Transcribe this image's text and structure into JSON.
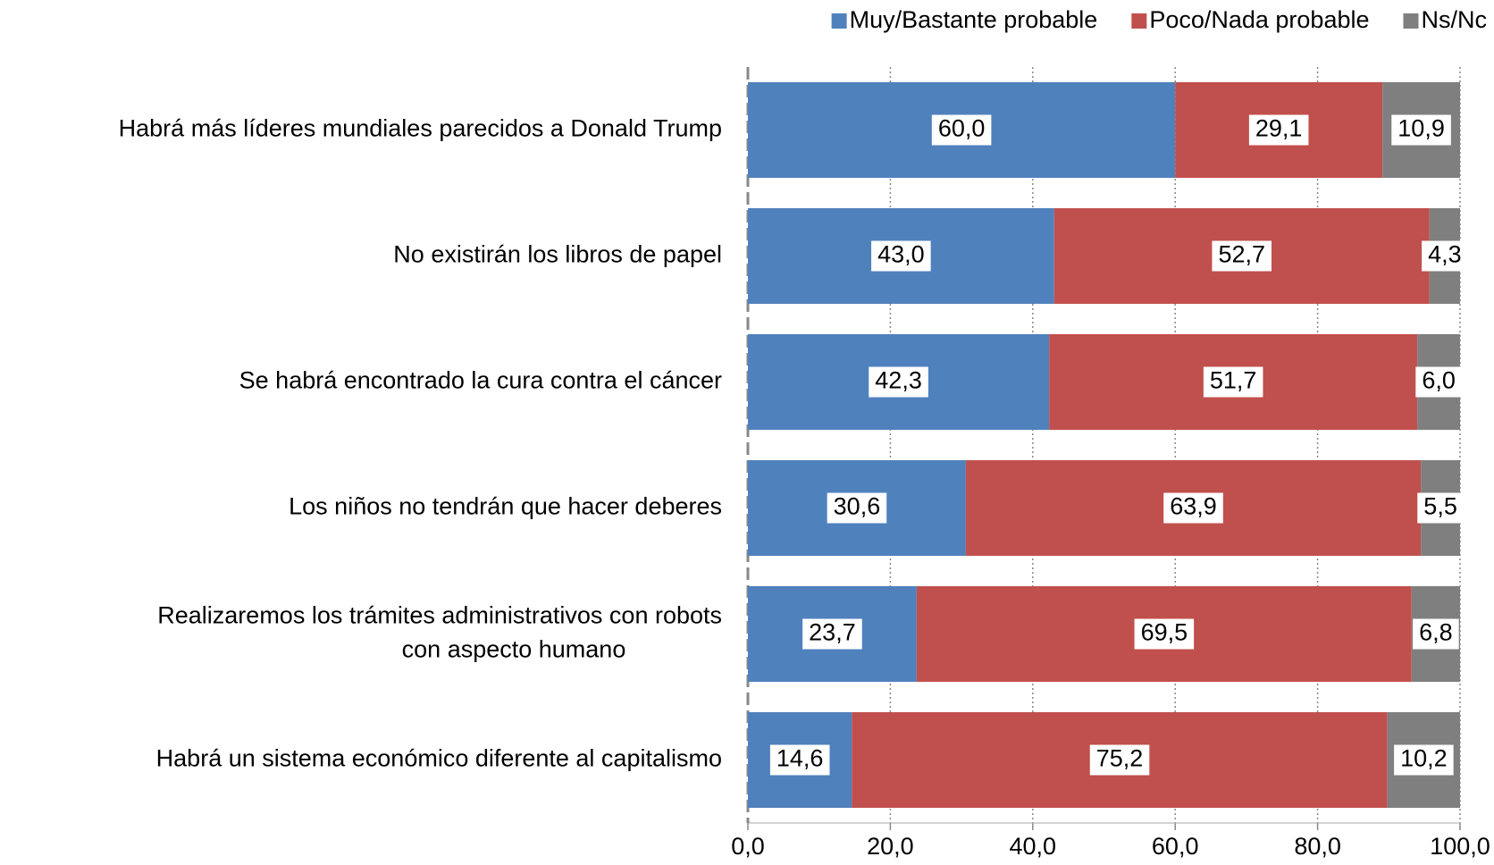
{
  "chart_data": {
    "type": "stacked_barh",
    "categories": [
      "Habrá más líderes mundiales parecidos a Donald Trump",
      "No existirán los libros de papel",
      "Se habrá encontrado la cura contra el cáncer",
      "Los niños no tendrán que hacer deberes",
      "Realizaremos los trámites administrativos con robots\ncon aspecto humano",
      "Habrá un sistema económico diferente al capitalismo"
    ],
    "series": [
      {
        "name": "Muy/Bastante probable",
        "color": "#4f81bd",
        "values": [
          60.0,
          43.0,
          42.3,
          30.6,
          23.7,
          14.6
        ],
        "value_labels": [
          "60,0",
          "43,0",
          "42,3",
          "30,6",
          "23,7",
          "14,6"
        ]
      },
      {
        "name": "Poco/Nada probable",
        "color": "#c0504d",
        "values": [
          29.1,
          52.7,
          51.7,
          63.9,
          69.5,
          75.2
        ],
        "value_labels": [
          "29,1",
          "52,7",
          "51,7",
          "63,9",
          "69,5",
          "75,2"
        ]
      },
      {
        "name": "Ns/Nc",
        "color": "#7f7f7f",
        "values": [
          10.9,
          4.3,
          6.0,
          5.5,
          6.8,
          10.2
        ],
        "value_labels": [
          "10,9",
          "4,3",
          "6,0",
          "5,5",
          "6,8",
          "10,2"
        ]
      }
    ],
    "xlim": [
      0,
      100
    ],
    "xticks": [
      {
        "value": 0,
        "label": "0,0"
      },
      {
        "value": 20,
        "label": "20,0"
      },
      {
        "value": 40,
        "label": "40,0"
      },
      {
        "value": 60,
        "label": "60,0"
      },
      {
        "value": 80,
        "label": "80,0"
      },
      {
        "value": 100,
        "label": "100,0"
      }
    ],
    "grid": true,
    "legend": "top-right"
  }
}
